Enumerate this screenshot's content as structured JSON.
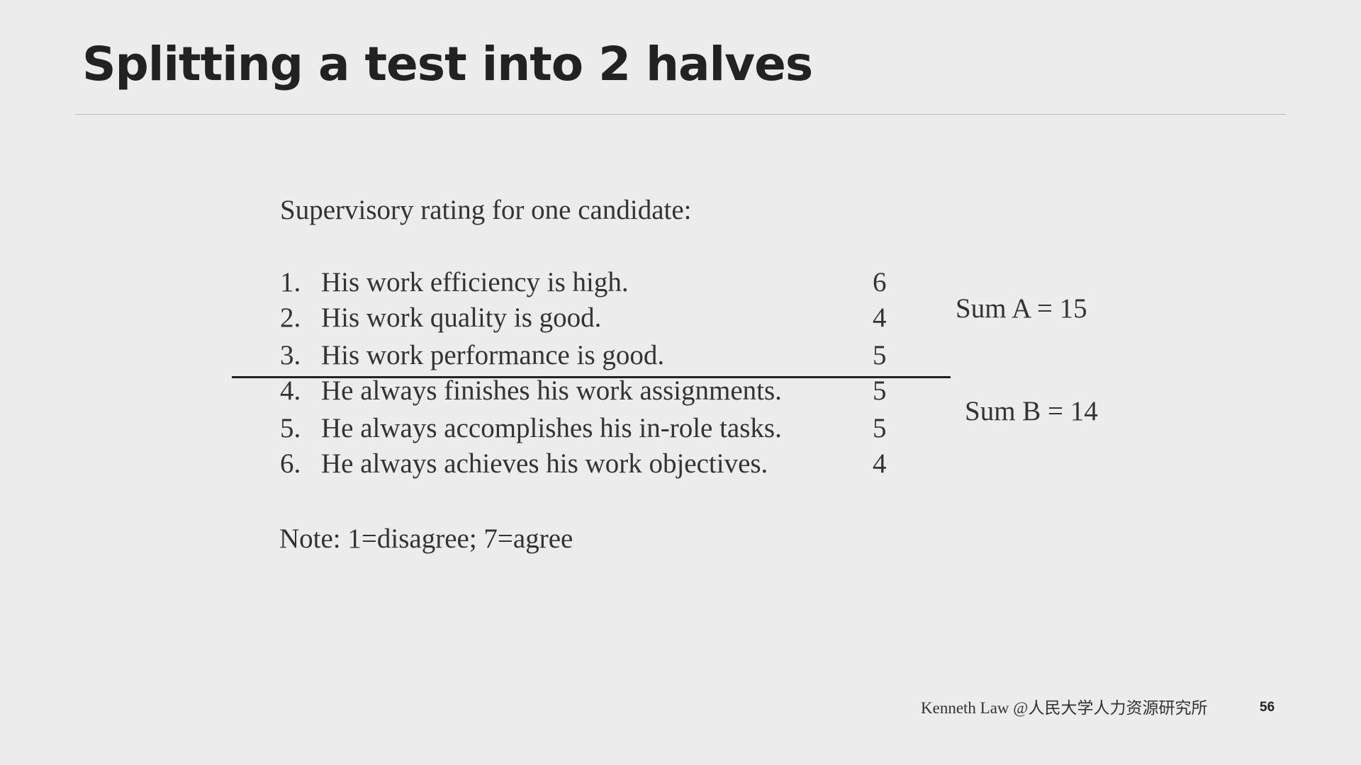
{
  "slide": {
    "title": "Splitting a test into 2 halves",
    "page_number": "56",
    "footer": "Kenneth Law @人民大学人力资源研究所"
  },
  "figure": {
    "heading": "Supervisory rating for one candidate:",
    "items": [
      {
        "num": "1.",
        "text": "His work efficiency is high.",
        "score": "6"
      },
      {
        "num": "2.",
        "text": "His work quality is good.",
        "score": "4"
      },
      {
        "num": "3.",
        "text": "His work performance is good.",
        "score": "5"
      },
      {
        "num": "4.",
        "text": "He always finishes his work assignments.",
        "score": "5"
      },
      {
        "num": "5.",
        "text": "He always accomplishes his in-role tasks.",
        "score": "5"
      },
      {
        "num": "6.",
        "text": "He always achieves his work objectives.",
        "score": "4"
      }
    ],
    "sum_a": "Sum A = 15",
    "sum_b": "Sum B = 14",
    "note": "Note: 1=disagree; 7=agree"
  }
}
